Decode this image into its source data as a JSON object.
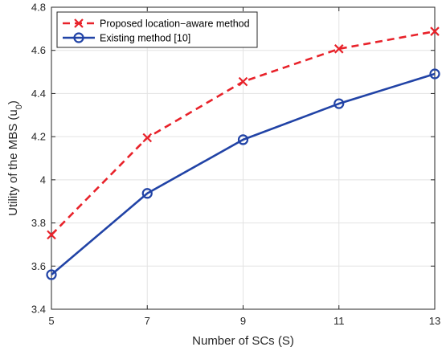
{
  "chart_data": {
    "type": "line",
    "title": "",
    "xlabel": "Number of SCs (S)",
    "ylabel_main": "Utility of the MBS (u",
    "ylabel_sub": "0",
    "ylabel_close": ")",
    "x": [
      5,
      7,
      9,
      11,
      13
    ],
    "xlim": [
      5,
      13
    ],
    "ylim": [
      3.4,
      4.8
    ],
    "xticks": [
      5,
      7,
      9,
      11,
      13
    ],
    "yticks": [
      3.4,
      3.6,
      3.8,
      4.0,
      4.2,
      4.4,
      4.6,
      4.8
    ],
    "ytick_labels": [
      "3.4",
      "3.6",
      "3.8",
      "4",
      "4.2",
      "4.4",
      "4.6",
      "4.8"
    ],
    "grid": true,
    "legend_position": "top-left",
    "series": [
      {
        "name": "Proposed location−aware method",
        "values": [
          3.745,
          4.195,
          4.455,
          4.607,
          4.688
        ],
        "color": "#e8222a",
        "line_style": "dashed",
        "marker": "x"
      },
      {
        "name": "Existing method [10]",
        "values": [
          3.56,
          3.937,
          4.186,
          4.353,
          4.491
        ],
        "color": "#2143a6",
        "line_style": "solid",
        "marker": "circle"
      }
    ]
  }
}
